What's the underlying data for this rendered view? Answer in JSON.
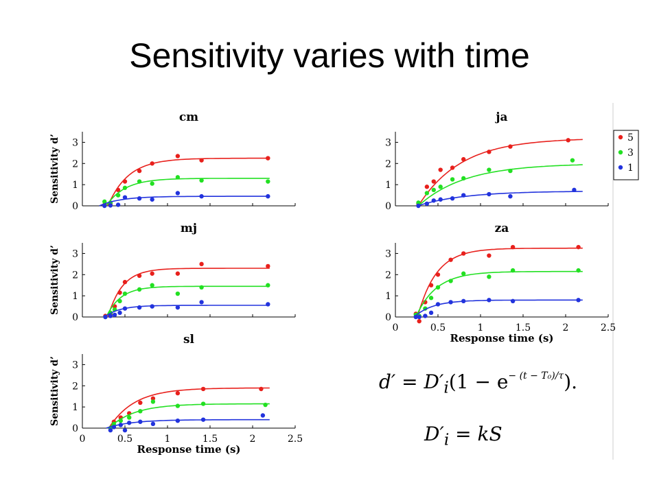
{
  "slide": {
    "title": "Sensitivity varies with time"
  },
  "equations": {
    "line1": "d′ = D′ᵢ(1 − e^(−(t−T₀)/τ)).",
    "line1_lhs": "d′ = D′",
    "line1_sub": "i",
    "line1_mid": "(1 − e",
    "line1_exp": "− (t − T₀)/τ",
    "line1_end": ").",
    "line2": "D′ᵢ = kS",
    "line2_lhs": "D′",
    "line2_sub": "i",
    "line2_rhs": " = kS"
  },
  "colors": {
    "series_5": "#e8201c",
    "series_3": "#22e022",
    "series_1": "#2233dd",
    "axis": "#000000"
  },
  "legend": {
    "entries": [
      "5",
      "3",
      "1"
    ],
    "placement": "top-right of panel ja"
  },
  "chart_data": [
    {
      "type": "scatter",
      "title": "cm",
      "xlabel": "",
      "ylabel": "Sensitivity d’",
      "xlim": [
        0,
        2.5
      ],
      "ylim": [
        0,
        3.5
      ],
      "xticks": [],
      "yticks": [
        "0",
        "1",
        "2",
        "3"
      ],
      "fit": "d' = D(1 - exp(-(t - T0)/tau))",
      "series": [
        {
          "name": "5",
          "color": "#e8201c",
          "D": 2.25,
          "T0": 0.3,
          "tau": 0.24,
          "points": [
            [
              0.26,
              0.05
            ],
            [
              0.33,
              0.1
            ],
            [
              0.42,
              0.75
            ],
            [
              0.5,
              1.15
            ],
            [
              0.67,
              1.65
            ],
            [
              0.82,
              2.0
            ],
            [
              1.12,
              2.35
            ],
            [
              1.4,
              2.15
            ],
            [
              2.18,
              2.25
            ]
          ]
        },
        {
          "name": "3",
          "color": "#22e022",
          "D": 1.3,
          "T0": 0.28,
          "tau": 0.22,
          "points": [
            [
              0.26,
              0.2
            ],
            [
              0.33,
              0.15
            ],
            [
              0.42,
              0.5
            ],
            [
              0.5,
              0.85
            ],
            [
              0.67,
              1.15
            ],
            [
              0.82,
              1.05
            ],
            [
              1.12,
              1.35
            ],
            [
              1.4,
              1.2
            ],
            [
              2.18,
              1.15
            ]
          ]
        },
        {
          "name": "1",
          "color": "#2233dd",
          "D": 0.45,
          "T0": 0.2,
          "tau": 0.25,
          "points": [
            [
              0.26,
              0.0
            ],
            [
              0.33,
              0.02
            ],
            [
              0.42,
              0.05
            ],
            [
              0.5,
              0.4
            ],
            [
              0.67,
              0.35
            ],
            [
              0.82,
              0.3
            ],
            [
              1.12,
              0.6
            ],
            [
              1.4,
              0.45
            ],
            [
              2.18,
              0.45
            ]
          ]
        }
      ]
    },
    {
      "type": "scatter",
      "title": "ja",
      "xlabel": "",
      "ylabel": "",
      "xlim": [
        0,
        2.5
      ],
      "ylim": [
        0,
        3.5
      ],
      "xticks": [],
      "yticks": [
        "0",
        "1",
        "2",
        "3"
      ],
      "series": [
        {
          "name": "5",
          "color": "#e8201c",
          "D": 3.2,
          "T0": 0.27,
          "tau": 0.5,
          "points": [
            [
              0.27,
              0.1
            ],
            [
              0.37,
              0.9
            ],
            [
              0.45,
              1.15
            ],
            [
              0.53,
              1.7
            ],
            [
              0.67,
              1.8
            ],
            [
              0.8,
              2.2
            ],
            [
              1.1,
              2.55
            ],
            [
              1.35,
              2.8
            ],
            [
              2.03,
              3.1
            ]
          ]
        },
        {
          "name": "3",
          "color": "#22e022",
          "D": 2.0,
          "T0": 0.27,
          "tau": 0.55,
          "points": [
            [
              0.27,
              0.15
            ],
            [
              0.37,
              0.6
            ],
            [
              0.45,
              0.75
            ],
            [
              0.53,
              0.9
            ],
            [
              0.67,
              1.25
            ],
            [
              0.8,
              1.3
            ],
            [
              1.1,
              1.7
            ],
            [
              1.35,
              1.65
            ],
            [
              2.08,
              2.15
            ]
          ]
        },
        {
          "name": "1",
          "color": "#2233dd",
          "D": 0.7,
          "T0": 0.26,
          "tau": 0.55,
          "points": [
            [
              0.27,
              0.0
            ],
            [
              0.37,
              0.1
            ],
            [
              0.45,
              0.25
            ],
            [
              0.53,
              0.3
            ],
            [
              0.67,
              0.35
            ],
            [
              0.8,
              0.5
            ],
            [
              1.1,
              0.55
            ],
            [
              1.35,
              0.45
            ],
            [
              2.1,
              0.75
            ]
          ]
        }
      ]
    },
    {
      "type": "scatter",
      "title": "mj",
      "xlabel": "",
      "ylabel": "Sensitivity d’",
      "xlim": [
        0,
        2.5
      ],
      "ylim": [
        0,
        3.5
      ],
      "xticks": [],
      "yticks": [
        "0",
        "1",
        "2",
        "3"
      ],
      "series": [
        {
          "name": "5",
          "color": "#e8201c",
          "D": 2.3,
          "T0": 0.3,
          "tau": 0.17,
          "points": [
            [
              0.27,
              0.05
            ],
            [
              0.33,
              0.15
            ],
            [
              0.38,
              0.5
            ],
            [
              0.44,
              1.15
            ],
            [
              0.5,
              1.65
            ],
            [
              0.67,
              1.95
            ],
            [
              0.82,
              2.05
            ],
            [
              1.12,
              2.05
            ],
            [
              1.4,
              2.5
            ],
            [
              2.18,
              2.4
            ]
          ]
        },
        {
          "name": "3",
          "color": "#22e022",
          "D": 1.45,
          "T0": 0.28,
          "tau": 0.17,
          "points": [
            [
              0.27,
              0.0
            ],
            [
              0.33,
              0.2
            ],
            [
              0.38,
              0.35
            ],
            [
              0.44,
              0.75
            ],
            [
              0.5,
              1.1
            ],
            [
              0.67,
              1.3
            ],
            [
              0.82,
              1.5
            ],
            [
              1.12,
              1.1
            ],
            [
              1.4,
              1.4
            ],
            [
              2.18,
              1.5
            ]
          ]
        },
        {
          "name": "1",
          "color": "#2233dd",
          "D": 0.55,
          "T0": 0.26,
          "tau": 0.18,
          "points": [
            [
              0.27,
              0.0
            ],
            [
              0.33,
              0.05
            ],
            [
              0.38,
              0.1
            ],
            [
              0.44,
              0.2
            ],
            [
              0.5,
              0.4
            ],
            [
              0.67,
              0.45
            ],
            [
              0.82,
              0.5
            ],
            [
              1.12,
              0.45
            ],
            [
              1.4,
              0.7
            ],
            [
              2.18,
              0.6
            ]
          ]
        }
      ]
    },
    {
      "type": "scatter",
      "title": "za",
      "xlabel": "Response time (s)",
      "ylabel": "",
      "xlim": [
        0,
        2.5
      ],
      "ylim": [
        0,
        3.5
      ],
      "xticks": [
        "0",
        "0.5",
        "1",
        "1.5",
        "2",
        "2.5"
      ],
      "yticks": [
        "0",
        "1",
        "2",
        "3"
      ],
      "series": [
        {
          "name": "5",
          "color": "#e8201c",
          "D": 3.25,
          "T0": 0.26,
          "tau": 0.22,
          "points": [
            [
              0.24,
              0.15
            ],
            [
              0.28,
              -0.2
            ],
            [
              0.35,
              0.7
            ],
            [
              0.42,
              1.5
            ],
            [
              0.5,
              2.0
            ],
            [
              0.65,
              2.7
            ],
            [
              0.8,
              3.0
            ],
            [
              1.1,
              2.9
            ],
            [
              1.38,
              3.3
            ],
            [
              2.15,
              3.3
            ]
          ]
        },
        {
          "name": "3",
          "color": "#22e022",
          "D": 2.15,
          "T0": 0.24,
          "tau": 0.24,
          "points": [
            [
              0.24,
              0.1
            ],
            [
              0.28,
              0.05
            ],
            [
              0.35,
              0.4
            ],
            [
              0.42,
              0.9
            ],
            [
              0.5,
              1.4
            ],
            [
              0.65,
              1.7
            ],
            [
              0.8,
              2.05
            ],
            [
              1.1,
              1.9
            ],
            [
              1.38,
              2.2
            ],
            [
              2.15,
              2.2
            ]
          ]
        },
        {
          "name": "1",
          "color": "#2233dd",
          "D": 0.8,
          "T0": 0.22,
          "tau": 0.22,
          "points": [
            [
              0.24,
              0.0
            ],
            [
              0.28,
              0.0
            ],
            [
              0.35,
              0.05
            ],
            [
              0.42,
              0.2
            ],
            [
              0.5,
              0.6
            ],
            [
              0.65,
              0.7
            ],
            [
              0.8,
              0.75
            ],
            [
              1.1,
              0.8
            ],
            [
              1.38,
              0.75
            ],
            [
              2.15,
              0.8
            ]
          ]
        }
      ]
    },
    {
      "type": "scatter",
      "title": "sl",
      "xlabel": "Response time (s)",
      "ylabel": "Sensitivity d’",
      "xlim": [
        0,
        2.5
      ],
      "ylim": [
        0,
        3.5
      ],
      "xticks": [
        "0",
        "0.5",
        "1",
        "1.5",
        "2",
        "2.5"
      ],
      "yticks": [
        "0",
        "1",
        "2",
        "3"
      ],
      "series": [
        {
          "name": "5",
          "color": "#e8201c",
          "D": 1.9,
          "T0": 0.31,
          "tau": 0.3,
          "points": [
            [
              0.33,
              0.0
            ],
            [
              0.37,
              0.3
            ],
            [
              0.45,
              0.5
            ],
            [
              0.55,
              0.7
            ],
            [
              0.68,
              1.2
            ],
            [
              0.83,
              1.4
            ],
            [
              1.12,
              1.65
            ],
            [
              1.42,
              1.85
            ],
            [
              2.1,
              1.85
            ]
          ]
        },
        {
          "name": "3",
          "color": "#22e022",
          "D": 1.15,
          "T0": 0.31,
          "tau": 0.3,
          "points": [
            [
              0.33,
              0.0
            ],
            [
              0.37,
              0.2
            ],
            [
              0.45,
              0.35
            ],
            [
              0.55,
              0.5
            ],
            [
              0.68,
              0.8
            ],
            [
              0.83,
              1.25
            ],
            [
              1.12,
              1.05
            ],
            [
              1.42,
              1.15
            ],
            [
              2.15,
              1.1
            ]
          ]
        },
        {
          "name": "1",
          "color": "#2233dd",
          "D": 0.4,
          "T0": 0.28,
          "tau": 0.3,
          "points": [
            [
              0.33,
              -0.1
            ],
            [
              0.37,
              0.05
            ],
            [
              0.45,
              0.15
            ],
            [
              0.5,
              -0.1
            ],
            [
              0.55,
              0.25
            ],
            [
              0.68,
              0.3
            ],
            [
              0.83,
              0.2
            ],
            [
              1.12,
              0.35
            ],
            [
              1.42,
              0.4
            ],
            [
              2.12,
              0.6
            ]
          ]
        }
      ]
    }
  ]
}
